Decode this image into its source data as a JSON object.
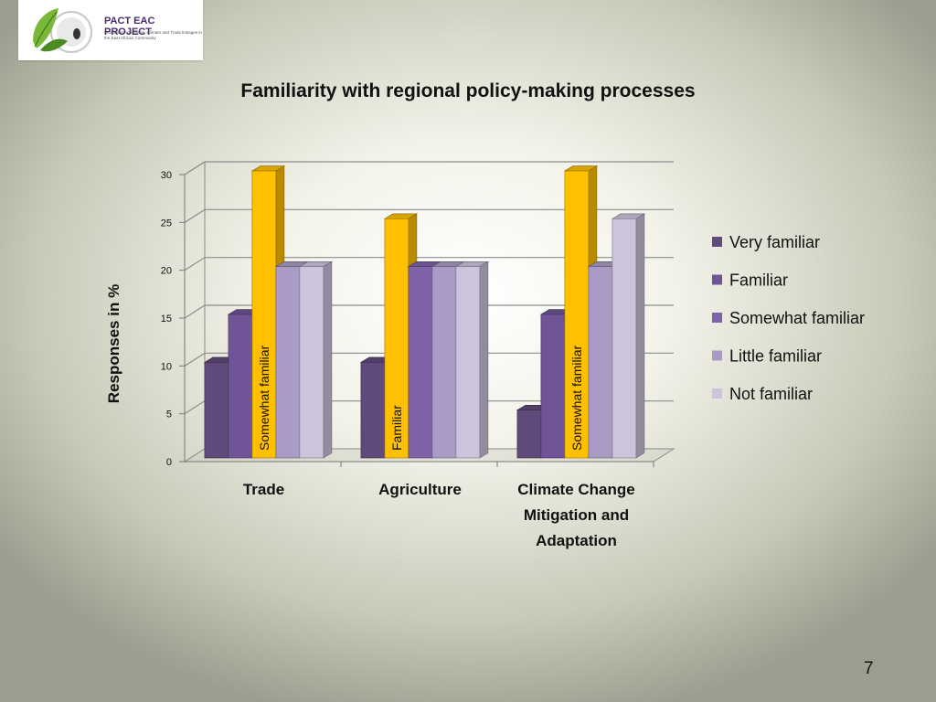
{
  "logo": {
    "title": "PACT EAC PROJECT",
    "tagline": "Promoting Agriculture, Climate and Trade linkages in the East African Community",
    "colors": {
      "leaf": "#7ab83a",
      "leaf_dark": "#4c8a22",
      "text": "#4a2a6e"
    }
  },
  "page_number": "7",
  "chart_data": {
    "type": "bar",
    "title": "Familiarity with regional policy-making processes",
    "ylabel": "Responses  in  %",
    "xlabel": "",
    "ylim": [
      0,
      30
    ],
    "yticks": [
      0,
      5,
      10,
      15,
      20,
      25,
      30
    ],
    "grid": true,
    "legend_position": "right",
    "categories": [
      [
        "Trade"
      ],
      [
        "Agriculture"
      ],
      [
        "Climate Change",
        "Mitigation and",
        "Adaptation"
      ]
    ],
    "series": [
      {
        "name": "Very familiar",
        "values": [
          10,
          10,
          5
        ],
        "color": "#604a7b"
      },
      {
        "name": "Familiar",
        "values": [
          15,
          25,
          15
        ],
        "color": "#6f5597"
      },
      {
        "name": "Somewhat familiar",
        "values": [
          30,
          20,
          30
        ],
        "color": "#7f63a8"
      },
      {
        "name": "Little familiar",
        "values": [
          20,
          20,
          20
        ],
        "color": "#a99bc5"
      },
      {
        "name": "Not familiar",
        "values": [
          20,
          20,
          25
        ],
        "color": "#ccc3dd"
      }
    ],
    "highlight": {
      "color": "#ffc000",
      "bars": [
        {
          "category": 0,
          "series": 2,
          "label": "Somewhat familiar"
        },
        {
          "category": 1,
          "series": 1,
          "label": "Familiar"
        },
        {
          "category": 2,
          "series": 2,
          "label": "Somewhat familiar"
        }
      ]
    }
  }
}
